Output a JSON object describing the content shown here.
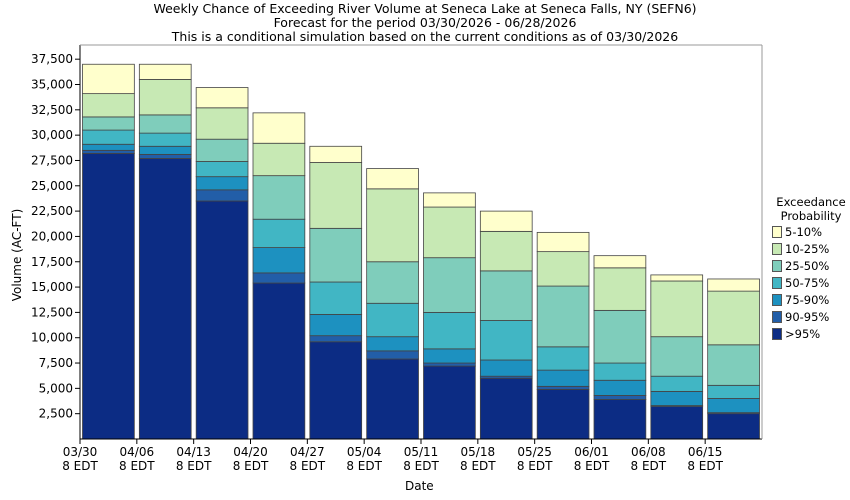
{
  "chart_data": {
    "type": "bar",
    "stacked": true,
    "title_lines": [
      "Weekly Chance of Exceeding River Volume at Seneca Lake at Seneca Falls, NY (SEFN6)",
      "Forecast for the period 03/30/2026 - 06/28/2026",
      "This is a conditional simulation based on the current conditions as of 03/30/2026"
    ],
    "xlabel": "Date",
    "ylabel": "Volume (AC-FT)",
    "ylim": [
      0,
      38900
    ],
    "yticks": [
      2500,
      5000,
      7500,
      10000,
      12500,
      15000,
      17500,
      20000,
      22500,
      25000,
      27500,
      30000,
      32500,
      35000,
      37500
    ],
    "ytick_labels": [
      "2,500",
      "5,000",
      "7,500",
      "10,000",
      "12,500",
      "15,000",
      "17,500",
      "20,000",
      "22,500",
      "25,000",
      "27,500",
      "30,000",
      "32,500",
      "35,000",
      "37,500"
    ],
    "xtick_labels": [
      [
        "03/30",
        "8 EDT"
      ],
      [
        "04/06",
        "8 EDT"
      ],
      [
        "04/13",
        "8 EDT"
      ],
      [
        "04/20",
        "8 EDT"
      ],
      [
        "04/27",
        "8 EDT"
      ],
      [
        "05/04",
        "8 EDT"
      ],
      [
        "05/11",
        "8 EDT"
      ],
      [
        "05/18",
        "8 EDT"
      ],
      [
        "05/25",
        "8 EDT"
      ],
      [
        "06/01",
        "8 EDT"
      ],
      [
        "06/08",
        "8 EDT"
      ],
      [
        "06/15",
        "8 EDT"
      ]
    ],
    "legend_title": [
      "Exceedance",
      "Probability"
    ],
    "legend": [
      {
        "label": "5-10%",
        "color": "#ffffcc"
      },
      {
        "label": "10-25%",
        "color": "#c7e9b4"
      },
      {
        "label": "25-50%",
        "color": "#7fcdbb"
      },
      {
        "label": "50-75%",
        "color": "#41b6c4"
      },
      {
        "label": "75-90%",
        "color": "#1d91c0"
      },
      {
        "label": "90-95%",
        "color": "#225ea8"
      },
      {
        ">95%": null,
        "label": ">95%",
        "color": "#0c2c84"
      }
    ],
    "bands": [
      ">95%",
      "90-95%",
      "75-90%",
      "50-75%",
      "25-50%",
      "10-25%",
      "5-10%"
    ],
    "weeks": [
      {
        "label": "03/30",
        "levels": [
          28200,
          28500,
          29100,
          30500,
          31800,
          34100,
          37000
        ]
      },
      {
        "label": "04/06",
        "levels": [
          27700,
          28100,
          28900,
          30200,
          32000,
          35500,
          37000
        ]
      },
      {
        "label": "04/13",
        "levels": [
          23500,
          24600,
          25900,
          27400,
          29600,
          32700,
          34700
        ]
      },
      {
        "label": "04/20",
        "levels": [
          15400,
          16400,
          18900,
          21700,
          26000,
          29200,
          32200
        ]
      },
      {
        "label": "04/27",
        "levels": [
          9600,
          10200,
          12300,
          15500,
          20800,
          27300,
          28900
        ]
      },
      {
        "label": "05/04",
        "levels": [
          7900,
          8700,
          10100,
          13400,
          17500,
          24700,
          26700
        ]
      },
      {
        "label": "05/11",
        "levels": [
          7200,
          7500,
          8900,
          12500,
          17900,
          22900,
          24300
        ]
      },
      {
        "label": "05/18",
        "levels": [
          6000,
          6200,
          7800,
          11700,
          16600,
          20500,
          22500
        ]
      },
      {
        "label": "05/25",
        "levels": [
          4900,
          5200,
          6800,
          9100,
          15100,
          18500,
          20400
        ]
      },
      {
        "label": "06/01",
        "levels": [
          3900,
          4300,
          5800,
          7500,
          12700,
          16900,
          18100
        ]
      },
      {
        "label": "06/08",
        "levels": [
          3200,
          3300,
          4700,
          6200,
          10100,
          15600,
          16200
        ]
      },
      {
        "label": "06/15",
        "levels": [
          2500,
          2600,
          4000,
          5300,
          9300,
          14600,
          15800
        ]
      }
    ]
  }
}
